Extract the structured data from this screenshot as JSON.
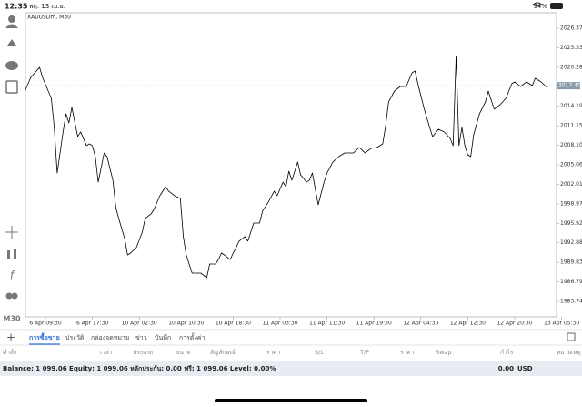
{
  "status_bar": {
    "time": "12:35",
    "date": "พฤ. 13 เม.ย.",
    "battery": "94%"
  },
  "left_toolbar": {
    "timeframe": "M30"
  },
  "chart_data": {
    "type": "line",
    "symbol_label": "XAUUSDm, M30",
    "color": "#000000",
    "grid": false,
    "x": [
      -7,
      -5,
      -2,
      -1,
      2,
      3,
      4,
      6,
      7,
      8,
      9,
      11,
      12,
      14,
      15,
      16,
      17,
      18,
      20,
      21,
      23,
      24,
      25,
      27,
      28,
      29,
      31,
      33,
      34,
      36,
      37,
      39,
      41,
      42,
      44,
      46,
      47,
      48,
      50,
      51,
      52,
      53,
      55,
      56,
      58,
      59,
      60,
      61,
      63,
      64,
      65,
      66,
      68,
      69,
      71,
      73,
      74,
      76,
      78,
      79,
      81,
      82,
      83,
      84,
      86,
      87,
      89,
      90,
      91,
      93,
      95,
      96,
      98,
      100,
      102,
      104,
      105,
      107,
      109,
      111,
      113,
      115,
      116,
      117,
      119,
      121,
      123,
      125,
      126,
      127,
      129,
      131,
      132,
      134,
      136,
      138,
      139,
      140,
      141,
      142,
      143,
      144,
      145,
      146,
      148,
      150,
      151,
      153,
      155,
      157,
      159,
      160,
      162,
      164,
      166,
      167,
      169,
      171
    ],
    "values": [
      2016.57,
      2018.7,
      2020.27,
      2018.7,
      2015.43,
      2010.89,
      2003.78,
      2010.18,
      2013.02,
      2011.6,
      2014.01,
      2009.47,
      2010.18,
      2008.05,
      2008.33,
      2008.05,
      2006.34,
      2002.36,
      2006.91,
      2006.34,
      2002.65,
      1998.38,
      1996.68,
      1993.55,
      1990.99,
      1991.28,
      1992.13,
      1994.55,
      1996.68,
      1997.39,
      1998.1,
      2000.23,
      2001.65,
      2000.94,
      2000.23,
      1999.8,
      1993.84,
      1990.99,
      1988.15,
      1988.15,
      1988.15,
      1988.15,
      1987.44,
      1989.57,
      1989.57,
      1990.28,
      1991.28,
      1990.99,
      1990.28,
      1991.28,
      1992.13,
      1993.13,
      1993.84,
      1993.13,
      1995.97,
      1995.97,
      1997.82,
      1999.24,
      2000.94,
      2000.23,
      2002.36,
      2001.65,
      2004.07,
      2002.65,
      2005.49,
      2003.5,
      2002.36,
      2002.65,
      2003.78,
      1998.81,
      2002.36,
      2003.78,
      2005.49,
      2006.34,
      2006.91,
      2006.91,
      2006.91,
      2007.76,
      2006.91,
      2007.62,
      2007.76,
      2008.33,
      2011.17,
      2014.87,
      2016.57,
      2017.28,
      2017.28,
      2019.41,
      2019.7,
      2017.71,
      2014.01,
      2010.89,
      2009.47,
      2010.6,
      2010.18,
      2009.18,
      2008.05,
      2021.97,
      2008.05,
      2010.89,
      2008.05,
      2006.62,
      2006.34,
      2009.75,
      2013.02,
      2014.87,
      2016.57,
      2013.73,
      2014.44,
      2015.43,
      2017.71,
      2017.99,
      2017.28,
      2017.99,
      2017.42,
      2018.56,
      2017.99,
      2017.14
    ],
    "xlim": [
      -6.82,
      174.26
    ],
    "ylim": [
      1981.33,
      2028.79
    ],
    "xticks": [
      {
        "value": 0,
        "label": "6 Apr 09:30"
      },
      {
        "value": 16,
        "label": "6 Apr 17:30"
      },
      {
        "value": 32,
        "label": "10 Apr 02:30"
      },
      {
        "value": 48,
        "label": "10 Apr 10:30"
      },
      {
        "value": 64,
        "label": "10 Apr 18:30"
      },
      {
        "value": 80,
        "label": "11 Apr 03:30"
      },
      {
        "value": 96,
        "label": "11 Apr 11:30"
      },
      {
        "value": 112,
        "label": "11 Apr 19:30"
      },
      {
        "value": 128,
        "label": "12 Apr 04:30"
      },
      {
        "value": 144,
        "label": "12 Apr 12:30"
      },
      {
        "value": 160,
        "label": "12 Apr 20:30"
      },
      {
        "value": 176,
        "label": "13 Apr 05:30"
      }
    ],
    "yticks": [
      2026.375,
      {
        "value": 2023.33,
        "label": "2023.330"
      },
      2020.285,
      2014.195,
      {
        "value": 2011.15,
        "label": "2011.150"
      },
      2008.105,
      {
        "value": 2005.06,
        "label": "2005.060"
      },
      2002.015,
      {
        "value": 1998.97,
        "label": "1998.970"
      },
      1995.925,
      {
        "value": 1992.88,
        "label": "1992.880"
      },
      1989.835,
      {
        "value": 1986.79,
        "label": "1986.790"
      },
      1983.745
    ],
    "current_price": 2017.404
  },
  "tabs": [
    "การซื้อขาย",
    "ประวัติ",
    "กล่องจดหมาย",
    "ข่าว",
    "บันทึก",
    "การตั้งค่า"
  ],
  "table": {
    "headers": [
      "คำสั่ง",
      "เวลา",
      "ประเภท",
      "ขนาด",
      "สัญลักษณ์",
      "ราคา",
      "S/L",
      "T/P",
      "ราคา",
      "Swap",
      "กำไร",
      "หมายเหตุ"
    ]
  },
  "balance": {
    "text": "Balance: 1 099.06 Equity: 1 099.06 หลักประกัน: 0.00 ฟรี: 1 099.06 Level: 0.00%",
    "profit": "0.00",
    "currency": "USD"
  }
}
